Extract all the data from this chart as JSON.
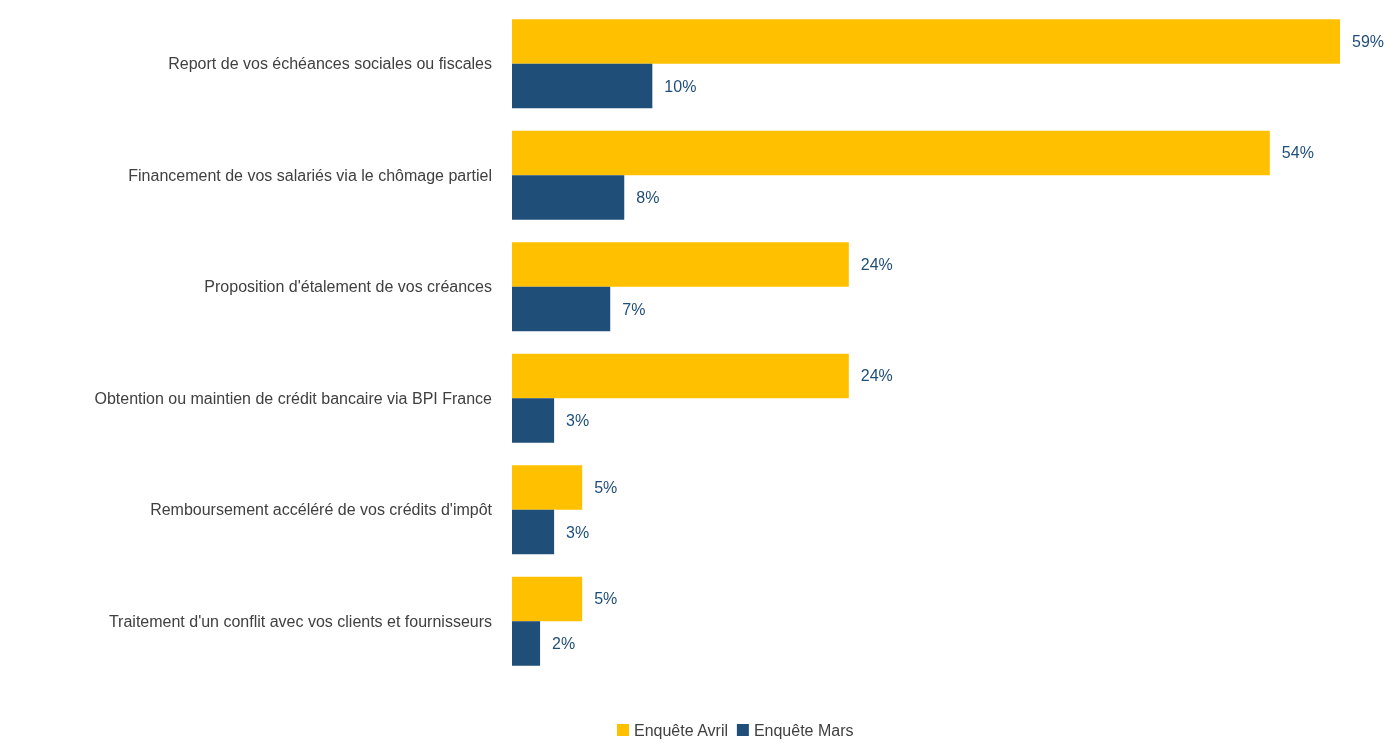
{
  "chart_data": {
    "type": "bar",
    "orientation": "horizontal",
    "tick_labels": "y",
    "legend": "bottom",
    "categories": [
      "Report de vos échéances sociales ou fiscales",
      "Financement de vos salariés via le chômage partiel",
      "Proposition d'étalement de vos créances",
      "Obtention ou maintien de crédit bancaire via BPI France",
      "Remboursement accéléré de vos crédits d'impôt",
      "Traitement d'un conflit avec vos clients et fournisseurs"
    ],
    "series": [
      {
        "name": "Enquête Avril",
        "color": "#ffc000",
        "values": [
          59,
          54,
          24,
          24,
          5,
          5
        ],
        "value_labels": [
          "59%",
          "54%",
          "24%",
          "24%",
          "5%",
          "5%"
        ]
      },
      {
        "name": "Enquête Mars",
        "color": "#1f4e79",
        "values": [
          10,
          8,
          7,
          3,
          3,
          2
        ],
        "value_labels": [
          "10%",
          "8%",
          "7%",
          "3%",
          "3%",
          "2%"
        ]
      }
    ]
  }
}
